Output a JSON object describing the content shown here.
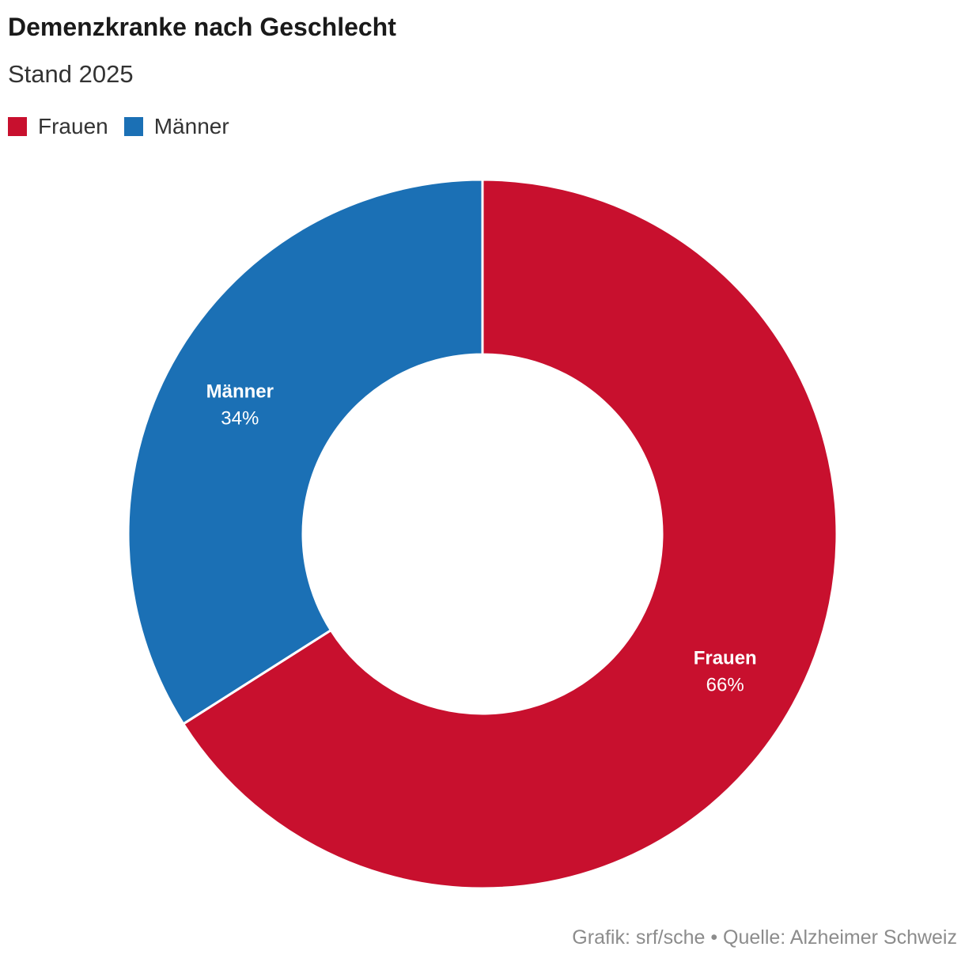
{
  "chart_data": {
    "type": "pie",
    "variant": "donut",
    "title": "Demenzkranke nach Geschlecht",
    "subtitle": "Stand 2025",
    "slices": [
      {
        "name": "Frauen",
        "value": 66,
        "label": "66%",
        "color": "#c8102e"
      },
      {
        "name": "Männer",
        "value": 34,
        "label": "34%",
        "color": "#1b70b5"
      }
    ],
    "legend": {
      "placement": "top-left",
      "items": [
        {
          "name": "Frauen",
          "color": "#c8102e"
        },
        {
          "name": "Männer",
          "color": "#1b70b5"
        }
      ]
    },
    "footer": "Grafik: srf/sche • Quelle: Alzheimer Schweiz"
  }
}
